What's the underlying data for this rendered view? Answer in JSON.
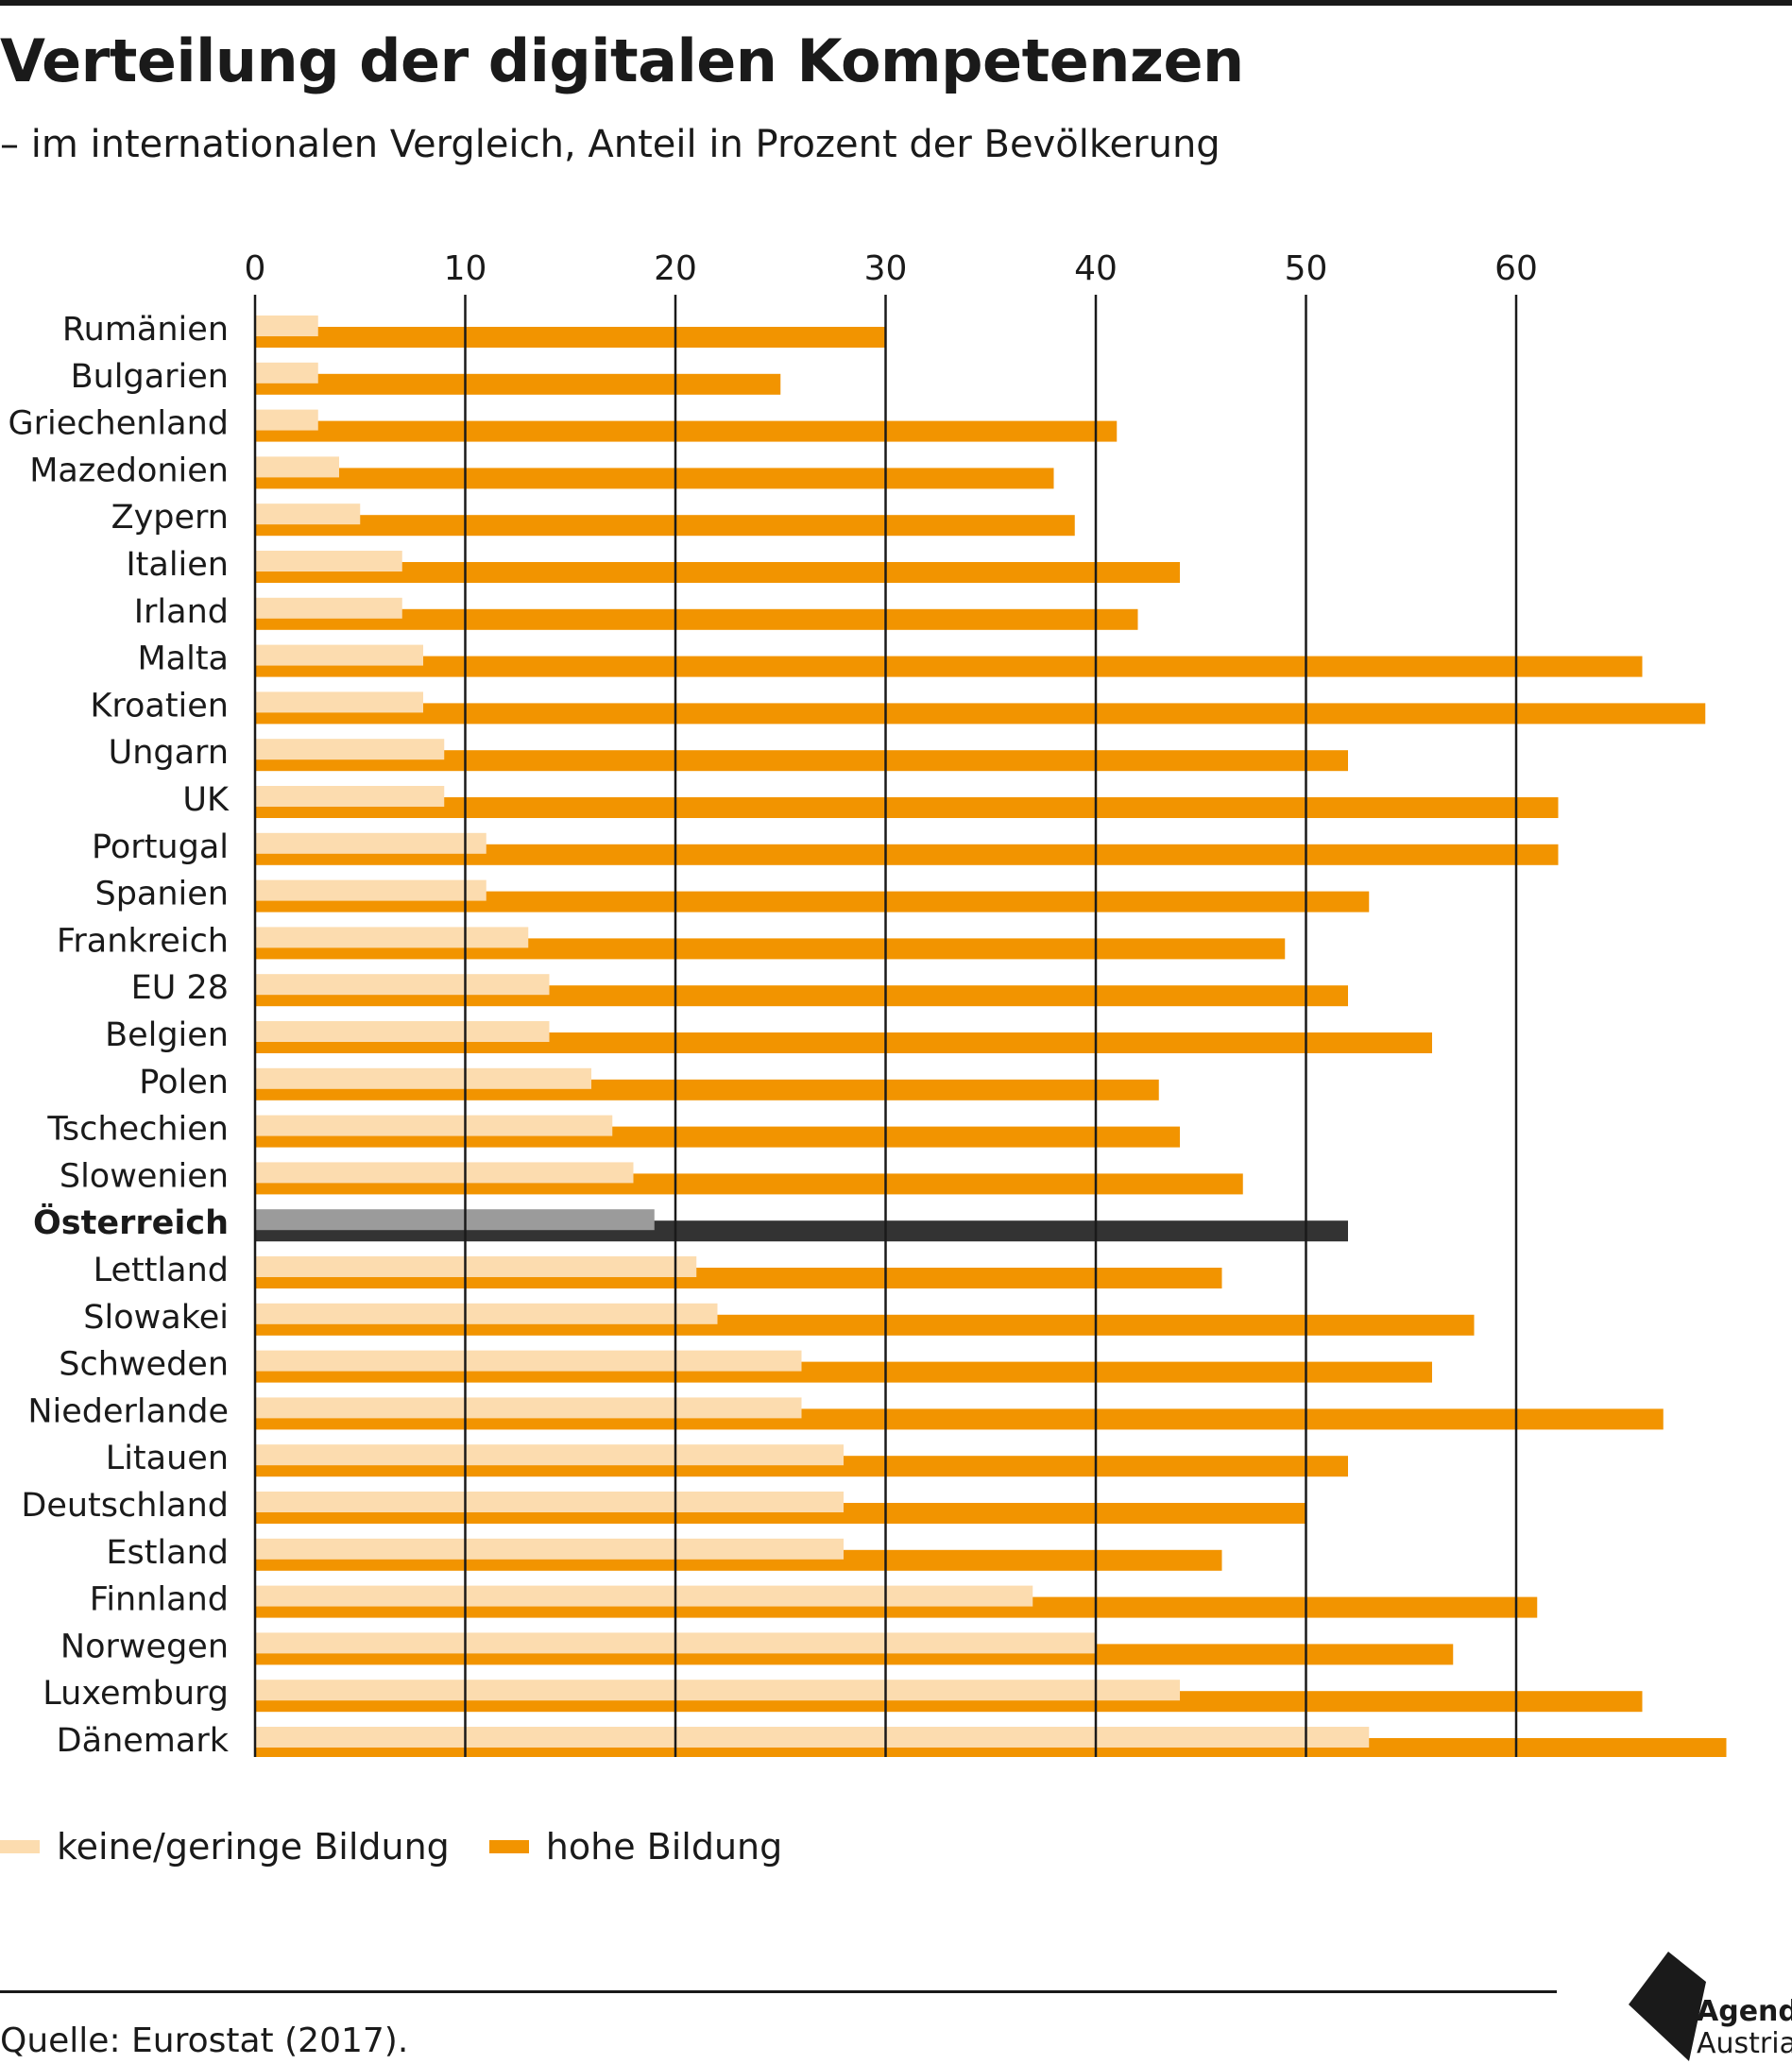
{
  "title": "Verteilung der digitalen Kompetenzen",
  "subtitle": "– im internationalen Vergleich, Anteil in Prozent der Bevölkerung",
  "source": "Quelle: Eurostat (2017).",
  "logo": {
    "line1": "Agenda",
    "line2": "Austria"
  },
  "colors": {
    "low": "#fcdcaf",
    "high": "#f29400",
    "highlight_low": "#9b9b9b",
    "highlight_high": "#333333",
    "grid": "#1a1a1a"
  },
  "chart_data": {
    "type": "bar",
    "orientation": "horizontal",
    "title": "Verteilung der digitalen Kompetenzen",
    "subtitle": "– im internationalen Vergleich, Anteil in Prozent der Bevölkerung",
    "xlim": [
      0,
      70
    ],
    "xticks": [
      0,
      10,
      20,
      30,
      40,
      50,
      60
    ],
    "grid": true,
    "legend_position": "bottom-left",
    "highlight": "Österreich",
    "categories": [
      "Rumänien",
      "Bulgarien",
      "Griechenland",
      "Mazedonien",
      "Zypern",
      "Italien",
      "Irland",
      "Malta",
      "Kroatien",
      "Ungarn",
      "UK",
      "Portugal",
      "Spanien",
      "Frankreich",
      "EU 28",
      "Belgien",
      "Polen",
      "Tschechien",
      "Slowenien",
      "Österreich",
      "Lettland",
      "Slowakei",
      "Schweden",
      "Niederlande",
      "Litauen",
      "Deutschland",
      "Estland",
      "Finnland",
      "Norwegen",
      "Luxemburg",
      "Dänemark"
    ],
    "series": [
      {
        "name": "keine/geringe Bildung",
        "values": [
          3,
          3,
          3,
          4,
          5,
          7,
          7,
          8,
          8,
          9,
          9,
          11,
          11,
          13,
          14,
          14,
          16,
          17,
          18,
          19,
          21,
          22,
          26,
          26,
          28,
          28,
          28,
          37,
          40,
          44,
          53
        ]
      },
      {
        "name": "hohe Bildung",
        "values": [
          30,
          25,
          41,
          38,
          39,
          44,
          42,
          66,
          69,
          52,
          62,
          62,
          53,
          49,
          52,
          56,
          43,
          44,
          47,
          52,
          46,
          58,
          56,
          67,
          52,
          50,
          46,
          61,
          57,
          66,
          70
        ]
      }
    ]
  }
}
